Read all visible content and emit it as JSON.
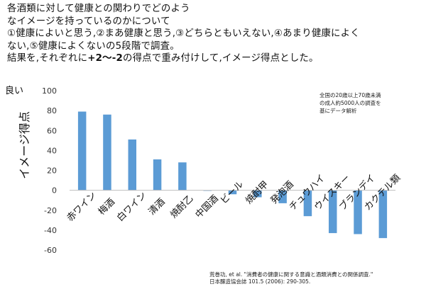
{
  "description": {
    "line1": "各酒類に対して健康との関わりでどのよう",
    "line2": "なイメージを持っているのかについて",
    "line3": "①健康によいと思う,②まあ健康と思う,③どちらともいえない,④あまり健康によく",
    "line4": "ない,⑤健康によくないの5段階で調査。",
    "line5_pre": "結果を,それぞれに",
    "line5_bold": "+2〜-2",
    "line5_post": "の得点で重み付けして,イメージ得点とした。"
  },
  "chart_data": {
    "type": "bar",
    "categories": [
      "赤ワイン",
      "梅酒",
      "白ワイン",
      "清酒",
      "焼酎乙",
      "中国酒",
      "ビール",
      "焼酎甲",
      "発泡酒",
      "チュウハイ",
      "ウイスキー",
      "ブランデイ",
      "カクテル類"
    ],
    "values": [
      79,
      76,
      51,
      31,
      28,
      0,
      -4,
      -7,
      -13,
      -26,
      -43,
      -44,
      -48
    ],
    "ylabel": "イメージ得点",
    "ylim": [
      -60,
      100
    ],
    "yticks": [
      -60,
      -40,
      -20,
      0,
      20,
      40,
      60,
      80,
      100
    ],
    "ytop_label": "良い",
    "bar_color": "#5B9BD5",
    "grid": false
  },
  "annotation": {
    "lines": [
      "全国の20歳以上70歳未満",
      "の成人約5000人の調査を",
      "基にデータ解析"
    ]
  },
  "citation": {
    "line1": "荒巻功, et al. \"消費者の健康に関する意識と酒類消費との関係調査.\"",
    "line2": "日本醸造協会誌 101.5 (2006): 290-305."
  }
}
